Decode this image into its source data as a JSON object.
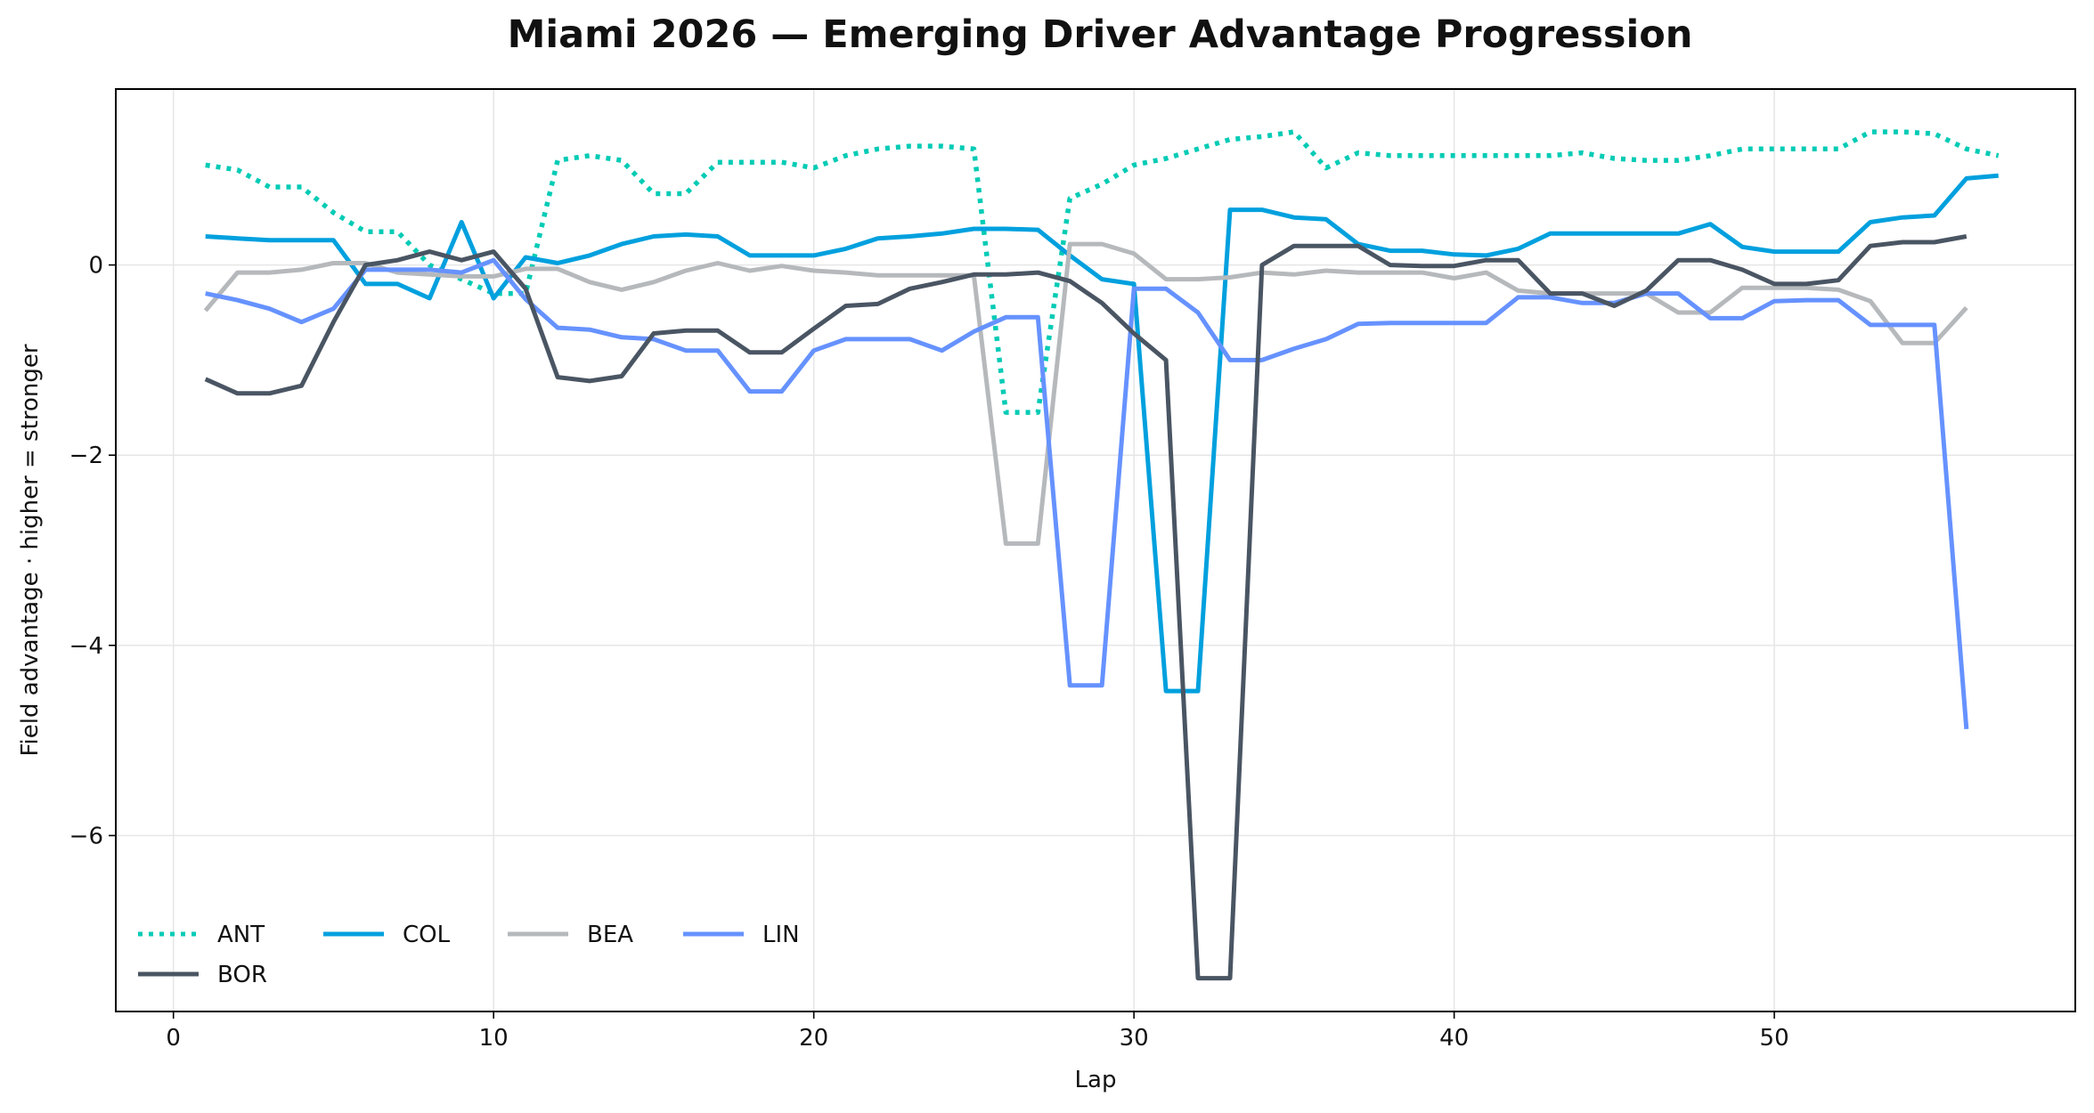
{
  "chart_data": {
    "type": "line",
    "title": "Miami 2026 — Emerging Driver Advantage Progression",
    "xlabel": "Lap",
    "ylabel": "Field advantage · higher = stronger",
    "xlim": [
      -1.8,
      59.4
    ],
    "ylim": [
      -7.85,
      1.85
    ],
    "xticks": [
      0,
      10,
      20,
      30,
      40,
      50
    ],
    "yticks": [
      0,
      -2,
      -4,
      -6
    ],
    "ytick_labels": [
      "0",
      "−2",
      "−4",
      "−6"
    ],
    "grid": true,
    "legend_placement": "lower-left",
    "series": [
      {
        "name": "ANT",
        "color": "#00CBB5",
        "dash": "dotted",
        "x": [
          1,
          2,
          3,
          4,
          5,
          6,
          7,
          8,
          9,
          10,
          11,
          12,
          13,
          14,
          15,
          16,
          17,
          18,
          19,
          20,
          21,
          22,
          23,
          24,
          25,
          26,
          27,
          28,
          29,
          30,
          31,
          32,
          33,
          34,
          35,
          36,
          37,
          38,
          39,
          40,
          41,
          42,
          43,
          44,
          45,
          46,
          47,
          48,
          49,
          50,
          51,
          52,
          53,
          54,
          55,
          56,
          57
        ],
        "y": [
          1.05,
          1.0,
          0.82,
          0.82,
          0.55,
          0.35,
          0.35,
          0.0,
          -0.15,
          -0.3,
          -0.3,
          1.1,
          1.15,
          1.1,
          0.75,
          0.75,
          1.08,
          1.08,
          1.08,
          1.02,
          1.15,
          1.22,
          1.25,
          1.25,
          1.22,
          -1.55,
          -1.55,
          0.7,
          0.85,
          1.05,
          1.12,
          1.22,
          1.32,
          1.35,
          1.4,
          1.02,
          1.18,
          1.15,
          1.15,
          1.15,
          1.15,
          1.15,
          1.15,
          1.18,
          1.12,
          1.1,
          1.1,
          1.15,
          1.22,
          1.22,
          1.22,
          1.22,
          1.4,
          1.4,
          1.38,
          1.22,
          1.15
        ]
      },
      {
        "name": "COL",
        "color": "#00A0DE",
        "dash": "solid",
        "x": [
          1,
          2,
          3,
          4,
          5,
          6,
          7,
          8,
          9,
          10,
          11,
          12,
          13,
          14,
          15,
          16,
          17,
          18,
          19,
          20,
          21,
          22,
          23,
          24,
          25,
          26,
          27,
          28,
          29,
          30,
          31,
          32,
          33,
          34,
          35,
          36,
          37,
          38,
          39,
          40,
          41,
          42,
          43,
          44,
          45,
          46,
          47,
          48,
          49,
          50,
          51,
          52,
          53,
          54,
          55,
          56,
          57
        ],
        "y": [
          0.3,
          0.28,
          0.26,
          0.26,
          0.26,
          -0.2,
          -0.2,
          -0.35,
          0.45,
          -0.35,
          0.08,
          0.02,
          0.1,
          0.22,
          0.3,
          0.32,
          0.3,
          0.1,
          0.1,
          0.1,
          0.17,
          0.28,
          0.3,
          0.33,
          0.38,
          0.38,
          0.37,
          0.1,
          -0.15,
          -0.2,
          -4.48,
          -4.48,
          0.58,
          0.58,
          0.5,
          0.48,
          0.22,
          0.15,
          0.15,
          0.11,
          0.1,
          0.17,
          0.33,
          0.33,
          0.33,
          0.33,
          0.33,
          0.43,
          0.19,
          0.14,
          0.14,
          0.14,
          0.45,
          0.5,
          0.52,
          0.91,
          0.94
        ]
      },
      {
        "name": "BEA",
        "color": "#B6B9BC",
        "dash": "solid",
        "x": [
          1,
          2,
          3,
          4,
          5,
          6,
          7,
          8,
          9,
          10,
          11,
          12,
          13,
          14,
          15,
          16,
          17,
          18,
          19,
          20,
          21,
          22,
          23,
          24,
          25,
          26,
          27,
          28,
          29,
          30,
          31,
          32,
          33,
          34,
          35,
          36,
          37,
          38,
          39,
          40,
          41,
          42,
          43,
          44,
          45,
          46,
          47,
          48,
          49,
          50,
          51,
          52,
          53,
          54,
          55,
          56
        ],
        "y": [
          -0.48,
          -0.08,
          -0.08,
          -0.05,
          0.02,
          0.02,
          -0.08,
          -0.1,
          -0.12,
          -0.12,
          -0.04,
          -0.04,
          -0.18,
          -0.26,
          -0.18,
          -0.06,
          0.02,
          -0.06,
          -0.01,
          -0.06,
          -0.08,
          -0.11,
          -0.11,
          -0.11,
          -0.11,
          -2.93,
          -2.93,
          0.22,
          0.22,
          0.12,
          -0.15,
          -0.15,
          -0.13,
          -0.08,
          -0.1,
          -0.06,
          -0.08,
          -0.08,
          -0.08,
          -0.14,
          -0.08,
          -0.27,
          -0.3,
          -0.3,
          -0.3,
          -0.3,
          -0.5,
          -0.5,
          -0.24,
          -0.24,
          -0.24,
          -0.26,
          -0.38,
          -0.82,
          -0.82,
          -0.45
        ]
      },
      {
        "name": "LIN",
        "color": "#6692FF",
        "dash": "solid",
        "x": [
          1,
          2,
          3,
          4,
          5,
          6,
          7,
          8,
          9,
          10,
          11,
          12,
          13,
          14,
          15,
          16,
          17,
          18,
          19,
          20,
          21,
          22,
          23,
          24,
          25,
          26,
          27,
          28,
          29,
          30,
          31,
          32,
          33,
          34,
          35,
          36,
          37,
          38,
          39,
          40,
          41,
          42,
          43,
          44,
          45,
          46,
          47,
          48,
          49,
          50,
          51,
          52,
          53,
          54,
          55,
          56
        ],
        "y": [
          -0.3,
          -0.37,
          -0.46,
          -0.6,
          -0.46,
          -0.05,
          -0.05,
          -0.05,
          -0.08,
          0.05,
          -0.36,
          -0.66,
          -0.68,
          -0.76,
          -0.78,
          -0.9,
          -0.9,
          -1.33,
          -1.33,
          -0.9,
          -0.78,
          -0.78,
          -0.78,
          -0.9,
          -0.7,
          -0.55,
          -0.55,
          -4.42,
          -4.42,
          -0.25,
          -0.25,
          -0.5,
          -1.0,
          -1.0,
          -0.88,
          -0.78,
          -0.62,
          -0.61,
          -0.61,
          -0.61,
          -0.61,
          -0.34,
          -0.34,
          -0.4,
          -0.4,
          -0.3,
          -0.3,
          -0.56,
          -0.56,
          -0.38,
          -0.37,
          -0.37,
          -0.63,
          -0.63,
          -0.63,
          -4.88
        ]
      },
      {
        "name": "BOR",
        "color": "#4A5563",
        "dash": "solid",
        "x": [
          1,
          2,
          3,
          4,
          5,
          6,
          7,
          8,
          9,
          10,
          11,
          12,
          13,
          14,
          15,
          16,
          17,
          18,
          19,
          20,
          21,
          22,
          23,
          24,
          25,
          26,
          27,
          28,
          29,
          30,
          31,
          32,
          33,
          34,
          35,
          36,
          37,
          38,
          39,
          40,
          41,
          42,
          43,
          44,
          45,
          46,
          47,
          48,
          49,
          50,
          51,
          52,
          53,
          54,
          55,
          56
        ],
        "y": [
          -1.2,
          -1.35,
          -1.35,
          -1.27,
          -0.6,
          0.0,
          0.05,
          0.14,
          0.05,
          0.14,
          -0.25,
          -1.18,
          -1.22,
          -1.17,
          -0.72,
          -0.69,
          -0.69,
          -0.92,
          -0.92,
          -0.67,
          -0.43,
          -0.41,
          -0.25,
          -0.18,
          -0.1,
          -0.1,
          -0.08,
          -0.17,
          -0.4,
          -0.72,
          -1.0,
          -7.5,
          -7.5,
          0.0,
          0.2,
          0.2,
          0.2,
          0.0,
          -0.01,
          -0.01,
          0.05,
          0.05,
          -0.3,
          -0.3,
          -0.43,
          -0.27,
          0.05,
          0.05,
          -0.05,
          -0.2,
          -0.2,
          -0.16,
          0.2,
          0.24,
          0.24,
          0.3
        ]
      }
    ]
  }
}
